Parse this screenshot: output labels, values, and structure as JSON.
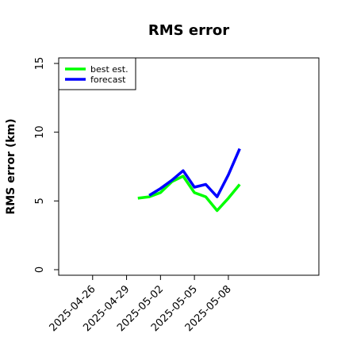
{
  "chart_data": {
    "type": "line",
    "title": "RMS error",
    "xlabel": "",
    "ylabel": "RMS error (km)",
    "x_type": "date",
    "xlim": [
      "2025-04-23",
      "2025-05-16"
    ],
    "ylim": [
      0,
      15
    ],
    "yticks": [
      0,
      5,
      10,
      15
    ],
    "xticks": [
      "2025-04-26",
      "2025-04-29",
      "2025-05-02",
      "2025-05-05",
      "2025-05-08"
    ],
    "grid": false,
    "legend_position": "top-left",
    "series": [
      {
        "name": "best est.",
        "color": "#00ff00",
        "x": [
          "2025-04-30",
          "2025-05-01",
          "2025-05-02",
          "2025-05-03",
          "2025-05-04",
          "2025-05-05",
          "2025-05-06",
          "2025-05-07",
          "2025-05-08",
          "2025-05-09"
        ],
        "y": [
          5.2,
          5.3,
          5.6,
          6.4,
          6.8,
          5.6,
          5.3,
          4.3,
          5.2,
          6.2
        ]
      },
      {
        "name": "forecast",
        "color": "#0000ff",
        "x": [
          "2025-05-01",
          "2025-05-02",
          "2025-05-03",
          "2025-05-04",
          "2025-05-05",
          "2025-05-06",
          "2025-05-07",
          "2025-05-08",
          "2025-05-09"
        ],
        "y": [
          5.4,
          5.9,
          6.5,
          7.2,
          6.0,
          6.2,
          5.3,
          6.9,
          8.8
        ]
      }
    ]
  }
}
